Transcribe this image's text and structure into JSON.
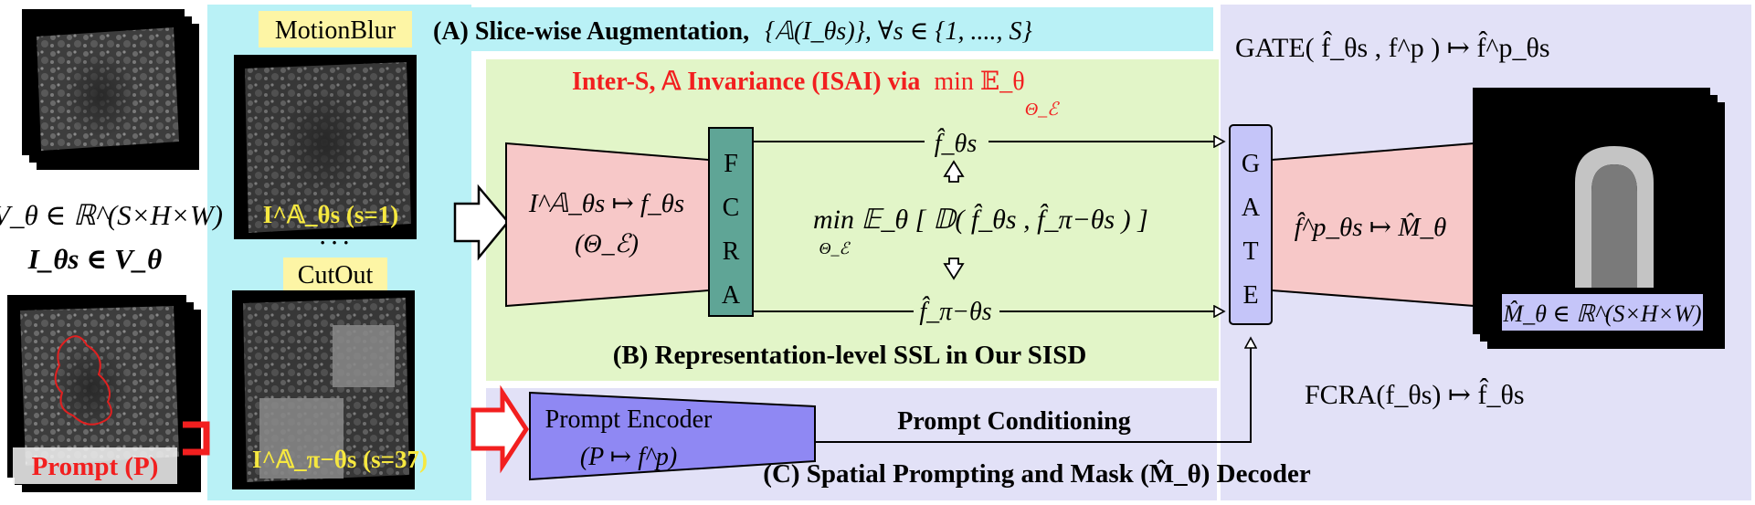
{
  "colors": {
    "cyan_panel": "#b9f1f6",
    "green_panel": "#e2f5c8",
    "lavender_panel": "#e2e1f7",
    "pink_block": "#f7c8c8",
    "teal_block": "#5fa596",
    "gate_block": "#c5c5f9",
    "prompt_encoder_block": "#8f88f3",
    "label_yellow": "#fdf5a5",
    "red_text": "#f21f1f",
    "yellow_text": "#f6e840"
  },
  "section_a": {
    "title": "(A) Slice-wise Augmentation,",
    "formula": "{𝔸(I_θs)}, ∀s ∈ {1, ...., S}"
  },
  "section_b": {
    "title": "(B) Representation-level SSL in Our SISD",
    "isai_title": "Inter-S, 𝔸 Invariance (ISAI) via",
    "isai_min": "min 𝔼_θ",
    "isai_sub": "Θ_ℰ",
    "objective": "min 𝔼_θ [ 𝔻( f̂_θs , f̂_π−θs ) ]",
    "objective_sub": "Θ_ℰ"
  },
  "section_c": {
    "title": "(C) Spatial Prompting and Mask (M̂_θ) Decoder",
    "conditioning": "Prompt Conditioning"
  },
  "left_column": {
    "volume": "V_θ ∈ ℝ^(S×H×W)",
    "slice": "I_θs ∈ V_θ",
    "prompt_label": "Prompt (P)"
  },
  "augmentation": {
    "motionblur_label": "MotionBlur",
    "cutout_label": "CutOut",
    "slice1_label": "I^𝔸_θs (s=1)",
    "slice37_label": "I^𝔸_π−θs (s=37)",
    "ellipsis": "· · ·"
  },
  "encoder": {
    "mapping": "I^𝔸_θs ↦ f_θs",
    "params": "(Θ_ℰ)"
  },
  "fcra": {
    "letters": [
      "F",
      "C",
      "R",
      "A"
    ]
  },
  "gate": {
    "letters": [
      "G",
      "A",
      "T",
      "E"
    ]
  },
  "features": {
    "top": "f̂_θs",
    "bottom": "f̂_π−θs"
  },
  "decoder": {
    "mapping": "f̂^p_θs ↦ M̂_θ"
  },
  "output": {
    "mask_label": "M̂_θ ∈ ℝ^(S×H×W)"
  },
  "prompt_encoder": {
    "label": "Prompt Encoder",
    "mapping": "(P ↦ f^p)"
  },
  "formulas": {
    "gate": "GATE( f̂_θs , f^p ) ↦ f̂^p_θs",
    "fcra": "FCRA(f_θs) ↦ f̂_θs"
  }
}
